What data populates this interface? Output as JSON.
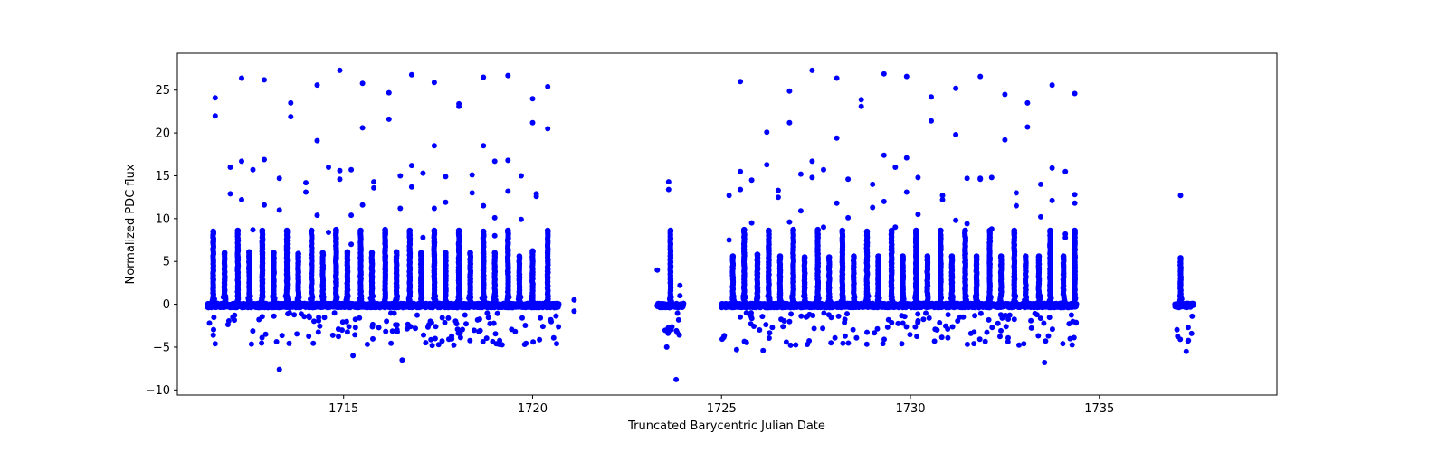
{
  "chart_data": {
    "type": "scatter",
    "title": "",
    "xlabel": "Truncated Barycentric Julian Date",
    "ylabel": "Normalized PDC flux",
    "xlim": [
      1710.6,
      1739.7
    ],
    "ylim": [
      -10.6,
      29.3
    ],
    "x_ticks": [
      1715,
      1720,
      1725,
      1730,
      1735
    ],
    "y_ticks": [
      -10,
      -5,
      0,
      5,
      10,
      15,
      20,
      25
    ],
    "grid": false,
    "legend": null,
    "marker_color": "#0000ff",
    "marker": "circle",
    "segments": [
      {
        "name": "segment-1",
        "x_start": 1711.4,
        "x_end": 1720.7,
        "baseline": 0.0
      },
      {
        "name": "segment-2",
        "x_start": 1723.3,
        "x_end": 1724.0,
        "baseline": 0.0
      },
      {
        "name": "segment-3",
        "x_start": 1725.0,
        "x_end": 1734.4,
        "baseline": 0.0
      },
      {
        "name": "segment-4",
        "x_start": 1737.0,
        "x_end": 1737.5,
        "baseline": 0.0
      }
    ],
    "pulse_peaks": {
      "segment-1": [
        {
          "x": 1711.55,
          "y": 8.5
        },
        {
          "x": 1711.85,
          "y": 6.0
        },
        {
          "x": 1712.2,
          "y": 8.6
        },
        {
          "x": 1712.5,
          "y": 6.1
        },
        {
          "x": 1712.85,
          "y": 8.6
        },
        {
          "x": 1713.15,
          "y": 6.0
        },
        {
          "x": 1713.5,
          "y": 8.6
        },
        {
          "x": 1713.8,
          "y": 5.9
        },
        {
          "x": 1714.15,
          "y": 8.6
        },
        {
          "x": 1714.45,
          "y": 6.0
        },
        {
          "x": 1714.8,
          "y": 8.7
        },
        {
          "x": 1715.1,
          "y": 6.1
        },
        {
          "x": 1715.45,
          "y": 8.6
        },
        {
          "x": 1715.75,
          "y": 6.0
        },
        {
          "x": 1716.1,
          "y": 8.7
        },
        {
          "x": 1716.4,
          "y": 6.1
        },
        {
          "x": 1716.75,
          "y": 8.6
        },
        {
          "x": 1717.05,
          "y": 6.0
        },
        {
          "x": 1717.4,
          "y": 8.6
        },
        {
          "x": 1717.7,
          "y": 6.0
        },
        {
          "x": 1718.05,
          "y": 8.6
        },
        {
          "x": 1718.35,
          "y": 6.0
        },
        {
          "x": 1718.7,
          "y": 8.5
        },
        {
          "x": 1719.0,
          "y": 6.0
        },
        {
          "x": 1719.35,
          "y": 8.6
        },
        {
          "x": 1719.65,
          "y": 5.6
        },
        {
          "x": 1720.0,
          "y": 6.2
        },
        {
          "x": 1720.4,
          "y": 8.6
        }
      ],
      "segment-2": [
        {
          "x": 1723.65,
          "y": 8.6
        }
      ],
      "segment-3": [
        {
          "x": 1725.3,
          "y": 5.6
        },
        {
          "x": 1725.6,
          "y": 8.7
        },
        {
          "x": 1725.95,
          "y": 5.8
        },
        {
          "x": 1726.25,
          "y": 8.6
        },
        {
          "x": 1726.55,
          "y": 5.6
        },
        {
          "x": 1726.9,
          "y": 8.7
        },
        {
          "x": 1727.2,
          "y": 5.5
        },
        {
          "x": 1727.55,
          "y": 8.7
        },
        {
          "x": 1727.85,
          "y": 5.5
        },
        {
          "x": 1728.2,
          "y": 8.6
        },
        {
          "x": 1728.5,
          "y": 5.6
        },
        {
          "x": 1728.85,
          "y": 8.5
        },
        {
          "x": 1729.15,
          "y": 5.6
        },
        {
          "x": 1729.5,
          "y": 8.6
        },
        {
          "x": 1729.8,
          "y": 5.6
        },
        {
          "x": 1730.15,
          "y": 8.6
        },
        {
          "x": 1730.45,
          "y": 5.6
        },
        {
          "x": 1730.8,
          "y": 8.6
        },
        {
          "x": 1731.1,
          "y": 5.6
        },
        {
          "x": 1731.45,
          "y": 8.6
        },
        {
          "x": 1731.75,
          "y": 5.6
        },
        {
          "x": 1732.1,
          "y": 8.6
        },
        {
          "x": 1732.4,
          "y": 5.6
        },
        {
          "x": 1732.75,
          "y": 8.6
        },
        {
          "x": 1733.05,
          "y": 5.6
        },
        {
          "x": 1733.4,
          "y": 5.6
        },
        {
          "x": 1733.7,
          "y": 8.6
        },
        {
          "x": 1734.05,
          "y": 5.6
        },
        {
          "x": 1734.35,
          "y": 8.6
        }
      ],
      "segment-4": [
        {
          "x": 1737.15,
          "y": 5.4
        }
      ]
    },
    "outliers_high": [
      {
        "x": 1711.6,
        "y": 24.1
      },
      {
        "x": 1711.6,
        "y": 22.0
      },
      {
        "x": 1712.0,
        "y": 16.0
      },
      {
        "x": 1712.0,
        "y": 12.9
      },
      {
        "x": 1712.3,
        "y": 26.4
      },
      {
        "x": 1712.3,
        "y": 16.7
      },
      {
        "x": 1712.3,
        "y": 12.2
      },
      {
        "x": 1712.6,
        "y": 15.7
      },
      {
        "x": 1712.6,
        "y": 8.7
      },
      {
        "x": 1712.9,
        "y": 26.2
      },
      {
        "x": 1712.9,
        "y": 16.9
      },
      {
        "x": 1712.9,
        "y": 11.6
      },
      {
        "x": 1713.3,
        "y": 14.7
      },
      {
        "x": 1713.3,
        "y": 11.0
      },
      {
        "x": 1713.6,
        "y": 23.5
      },
      {
        "x": 1713.6,
        "y": 21.9
      },
      {
        "x": 1714.0,
        "y": 14.2
      },
      {
        "x": 1714.0,
        "y": 13.1
      },
      {
        "x": 1714.3,
        "y": 25.6
      },
      {
        "x": 1714.3,
        "y": 19.1
      },
      {
        "x": 1714.3,
        "y": 10.4
      },
      {
        "x": 1714.6,
        "y": 16.0
      },
      {
        "x": 1714.6,
        "y": 8.4
      },
      {
        "x": 1714.9,
        "y": 27.3
      },
      {
        "x": 1714.9,
        "y": 15.6
      },
      {
        "x": 1714.9,
        "y": 14.6
      },
      {
        "x": 1715.2,
        "y": 15.7
      },
      {
        "x": 1715.2,
        "y": 10.4
      },
      {
        "x": 1715.2,
        "y": 7.0
      },
      {
        "x": 1715.5,
        "y": 25.8
      },
      {
        "x": 1715.5,
        "y": 20.6
      },
      {
        "x": 1715.5,
        "y": 11.6
      },
      {
        "x": 1715.8,
        "y": 14.3
      },
      {
        "x": 1715.8,
        "y": 13.6
      },
      {
        "x": 1716.2,
        "y": 24.7
      },
      {
        "x": 1716.2,
        "y": 21.6
      },
      {
        "x": 1716.5,
        "y": 15.0
      },
      {
        "x": 1716.5,
        "y": 11.2
      },
      {
        "x": 1716.8,
        "y": 26.8
      },
      {
        "x": 1716.8,
        "y": 16.2
      },
      {
        "x": 1716.8,
        "y": 13.7
      },
      {
        "x": 1717.1,
        "y": 15.3
      },
      {
        "x": 1717.1,
        "y": 7.8
      },
      {
        "x": 1717.4,
        "y": 25.9
      },
      {
        "x": 1717.4,
        "y": 18.5
      },
      {
        "x": 1717.4,
        "y": 11.2
      },
      {
        "x": 1717.7,
        "y": 14.9
      },
      {
        "x": 1717.7,
        "y": 11.9
      },
      {
        "x": 1718.05,
        "y": 23.4
      },
      {
        "x": 1718.05,
        "y": 23.1
      },
      {
        "x": 1718.4,
        "y": 15.1
      },
      {
        "x": 1718.4,
        "y": 13.0
      },
      {
        "x": 1718.7,
        "y": 26.5
      },
      {
        "x": 1718.7,
        "y": 18.5
      },
      {
        "x": 1718.7,
        "y": 11.5
      },
      {
        "x": 1719.0,
        "y": 16.7
      },
      {
        "x": 1719.0,
        "y": 10.1
      },
      {
        "x": 1719.0,
        "y": 8.0
      },
      {
        "x": 1719.35,
        "y": 26.7
      },
      {
        "x": 1719.35,
        "y": 16.8
      },
      {
        "x": 1719.35,
        "y": 13.2
      },
      {
        "x": 1719.7,
        "y": 15.0
      },
      {
        "x": 1719.7,
        "y": 9.9
      },
      {
        "x": 1720.0,
        "y": 24.0
      },
      {
        "x": 1720.0,
        "y": 21.2
      },
      {
        "x": 1720.1,
        "y": 12.9
      },
      {
        "x": 1720.1,
        "y": 12.6
      },
      {
        "x": 1720.4,
        "y": 25.4
      },
      {
        "x": 1720.4,
        "y": 20.5
      },
      {
        "x": 1723.6,
        "y": 14.3
      },
      {
        "x": 1723.6,
        "y": 13.4
      },
      {
        "x": 1725.2,
        "y": 12.7
      },
      {
        "x": 1725.2,
        "y": 7.5
      },
      {
        "x": 1725.5,
        "y": 26.0
      },
      {
        "x": 1725.5,
        "y": 15.5
      },
      {
        "x": 1725.5,
        "y": 13.4
      },
      {
        "x": 1725.8,
        "y": 14.5
      },
      {
        "x": 1725.8,
        "y": 9.5
      },
      {
        "x": 1726.2,
        "y": 20.1
      },
      {
        "x": 1726.2,
        "y": 16.3
      },
      {
        "x": 1726.5,
        "y": 13.3
      },
      {
        "x": 1726.5,
        "y": 12.5
      },
      {
        "x": 1726.8,
        "y": 24.9
      },
      {
        "x": 1726.8,
        "y": 21.2
      },
      {
        "x": 1726.8,
        "y": 9.6
      },
      {
        "x": 1727.1,
        "y": 15.2
      },
      {
        "x": 1727.1,
        "y": 10.9
      },
      {
        "x": 1727.4,
        "y": 27.3
      },
      {
        "x": 1727.4,
        "y": 16.7
      },
      {
        "x": 1727.4,
        "y": 14.8
      },
      {
        "x": 1727.7,
        "y": 15.7
      },
      {
        "x": 1727.7,
        "y": 9.0
      },
      {
        "x": 1728.05,
        "y": 26.4
      },
      {
        "x": 1728.05,
        "y": 19.4
      },
      {
        "x": 1728.05,
        "y": 11.8
      },
      {
        "x": 1728.35,
        "y": 14.6
      },
      {
        "x": 1728.35,
        "y": 10.1
      },
      {
        "x": 1728.7,
        "y": 23.9
      },
      {
        "x": 1728.7,
        "y": 23.1
      },
      {
        "x": 1729.0,
        "y": 14.0
      },
      {
        "x": 1729.0,
        "y": 11.3
      },
      {
        "x": 1729.3,
        "y": 26.9
      },
      {
        "x": 1729.3,
        "y": 17.4
      },
      {
        "x": 1729.3,
        "y": 12.0
      },
      {
        "x": 1729.6,
        "y": 16.0
      },
      {
        "x": 1729.6,
        "y": 9.0
      },
      {
        "x": 1729.9,
        "y": 26.6
      },
      {
        "x": 1729.9,
        "y": 17.1
      },
      {
        "x": 1729.9,
        "y": 13.1
      },
      {
        "x": 1730.2,
        "y": 14.8
      },
      {
        "x": 1730.2,
        "y": 10.5
      },
      {
        "x": 1730.55,
        "y": 24.2
      },
      {
        "x": 1730.55,
        "y": 21.4
      },
      {
        "x": 1730.85,
        "y": 12.7
      },
      {
        "x": 1730.85,
        "y": 12.2
      },
      {
        "x": 1731.2,
        "y": 25.2
      },
      {
        "x": 1731.2,
        "y": 19.8
      },
      {
        "x": 1731.2,
        "y": 9.8
      },
      {
        "x": 1731.5,
        "y": 14.7
      },
      {
        "x": 1731.5,
        "y": 9.4
      },
      {
        "x": 1731.85,
        "y": 26.6
      },
      {
        "x": 1731.85,
        "y": 14.7
      },
      {
        "x": 1731.85,
        "y": 14.6
      },
      {
        "x": 1732.15,
        "y": 14.8
      },
      {
        "x": 1732.15,
        "y": 8.8
      },
      {
        "x": 1732.5,
        "y": 24.5
      },
      {
        "x": 1732.5,
        "y": 19.2
      },
      {
        "x": 1732.8,
        "y": 13.0
      },
      {
        "x": 1732.8,
        "y": 11.5
      },
      {
        "x": 1733.1,
        "y": 23.5
      },
      {
        "x": 1733.1,
        "y": 20.7
      },
      {
        "x": 1733.45,
        "y": 14.0
      },
      {
        "x": 1733.45,
        "y": 10.2
      },
      {
        "x": 1733.75,
        "y": 25.6
      },
      {
        "x": 1733.75,
        "y": 15.9
      },
      {
        "x": 1733.75,
        "y": 12.1
      },
      {
        "x": 1734.1,
        "y": 15.5
      },
      {
        "x": 1734.1,
        "y": 8.2
      },
      {
        "x": 1734.1,
        "y": 7.8
      },
      {
        "x": 1734.35,
        "y": 24.6
      },
      {
        "x": 1734.35,
        "y": 12.8
      },
      {
        "x": 1734.35,
        "y": 11.8
      },
      {
        "x": 1737.15,
        "y": 12.7
      },
      {
        "x": 1721.1,
        "y": 0.5
      },
      {
        "x": 1721.1,
        "y": -0.8
      },
      {
        "x": 1723.9,
        "y": 2.2
      },
      {
        "x": 1723.9,
        "y": 1.0
      },
      {
        "x": 1723.3,
        "y": 4.0
      }
    ],
    "outliers_low": [
      {
        "x": 1711.45,
        "y": -2.2
      },
      {
        "x": 1711.55,
        "y": -3.6
      },
      {
        "x": 1711.6,
        "y": -4.6
      },
      {
        "x": 1713.3,
        "y": -7.6
      },
      {
        "x": 1715.25,
        "y": -6.0
      },
      {
        "x": 1716.55,
        "y": -6.5
      },
      {
        "x": 1723.55,
        "y": -5.0
      },
      {
        "x": 1723.6,
        "y": -3.0
      },
      {
        "x": 1723.8,
        "y": -8.8
      },
      {
        "x": 1726.1,
        "y": -5.4
      },
      {
        "x": 1725.4,
        "y": -5.3
      },
      {
        "x": 1733.55,
        "y": -6.8
      },
      {
        "x": 1737.3,
        "y": -5.5
      },
      {
        "x": 1737.35,
        "y": -2.7
      }
    ],
    "low_scatter_band": {
      "y_min": -4.8,
      "y_max": -1.0
    }
  }
}
